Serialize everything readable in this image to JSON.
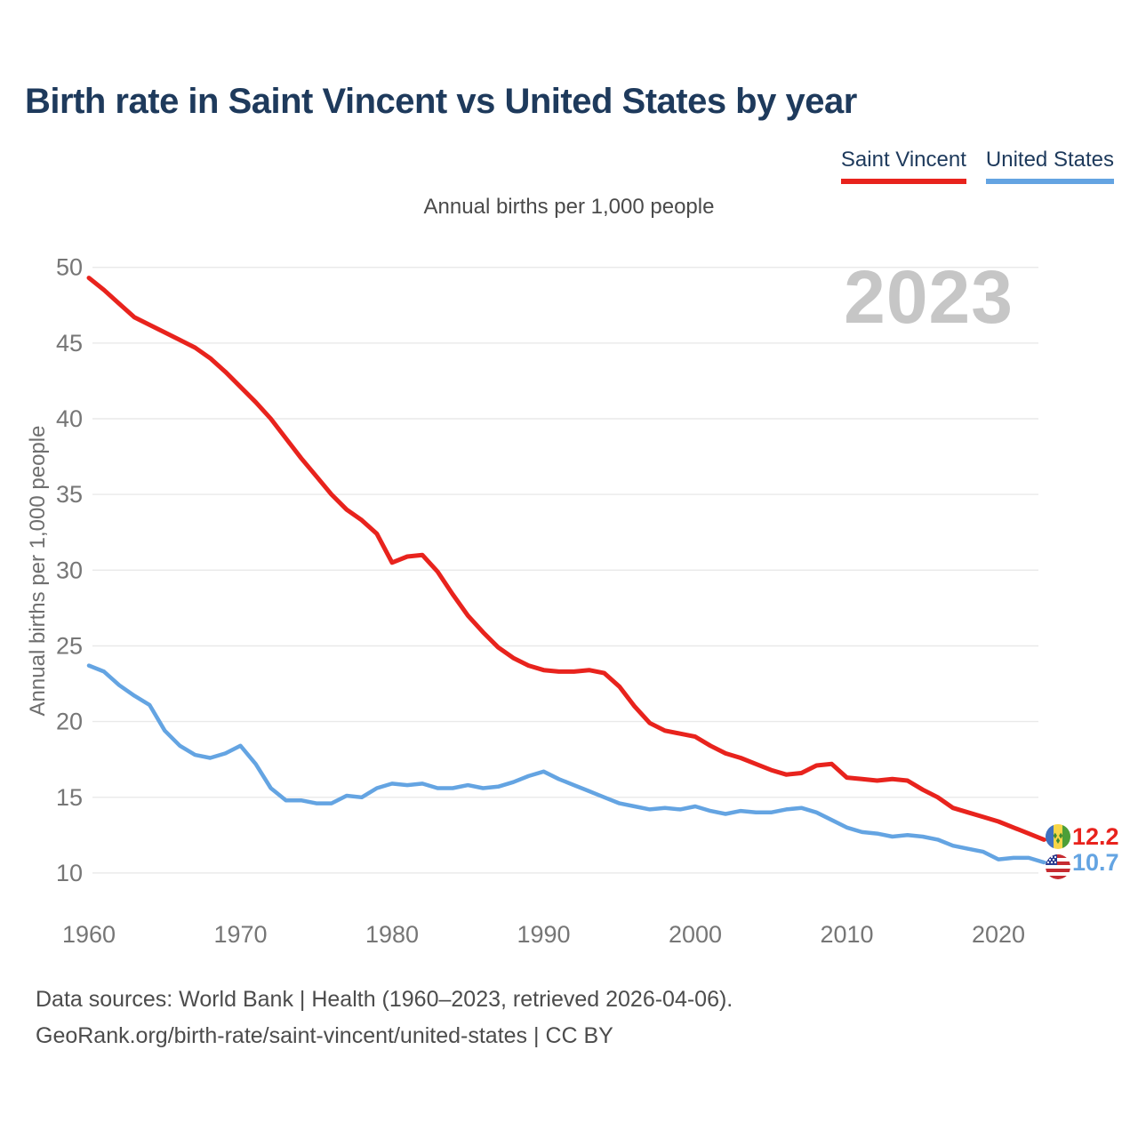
{
  "page": {
    "title": "Birth rate in Saint Vincent vs United States by year",
    "subtitle": "Annual births per 1,000 people",
    "y_axis_title": "Annual births per 1,000 people",
    "watermark_year": "2023",
    "footer_line1": "Data sources: World Bank | Health (1960–2023, retrieved 2026-04-06).",
    "footer_line2": "GeoRank.org/birth-rate/saint-vincent/united-states | CC BY"
  },
  "legend": {
    "items": [
      {
        "label": "Saint Vincent",
        "color": "#e8231d"
      },
      {
        "label": "United States",
        "color": "#64a4e2"
      }
    ]
  },
  "chart_data": {
    "type": "line",
    "title": "Birth rate in Saint Vincent vs United States by year",
    "subtitle": "Annual births per 1,000 people",
    "xlabel": "",
    "ylabel": "Annual births per 1,000 people",
    "grid": true,
    "legend_position": "top-right",
    "ylim": [
      9.5,
      51
    ],
    "x_ticks": [
      1960,
      1970,
      1980,
      1990,
      2000,
      2010,
      2020
    ],
    "y_ticks": [
      10,
      15,
      20,
      25,
      30,
      35,
      40,
      45,
      50
    ],
    "x": [
      1960,
      1961,
      1962,
      1963,
      1964,
      1965,
      1966,
      1967,
      1968,
      1969,
      1970,
      1971,
      1972,
      1973,
      1974,
      1975,
      1976,
      1977,
      1978,
      1979,
      1980,
      1981,
      1982,
      1983,
      1984,
      1985,
      1986,
      1987,
      1988,
      1989,
      1990,
      1991,
      1992,
      1993,
      1994,
      1995,
      1996,
      1997,
      1998,
      1999,
      2000,
      2001,
      2002,
      2003,
      2004,
      2005,
      2006,
      2007,
      2008,
      2009,
      2010,
      2011,
      2012,
      2013,
      2014,
      2015,
      2016,
      2017,
      2018,
      2019,
      2020,
      2021,
      2022,
      2023
    ],
    "series": [
      {
        "name": "Saint Vincent",
        "color": "#e8231d",
        "end_label": "12.2",
        "flag": "saint-vincent",
        "values": [
          49.3,
          48.5,
          47.6,
          46.7,
          46.2,
          45.7,
          45.2,
          44.7,
          44.0,
          43.1,
          42.1,
          41.1,
          40.0,
          38.7,
          37.4,
          36.2,
          35.0,
          34.0,
          33.3,
          32.4,
          30.5,
          30.9,
          31.0,
          29.9,
          28.4,
          27.0,
          25.9,
          24.9,
          24.2,
          23.7,
          23.4,
          23.3,
          23.3,
          23.4,
          23.2,
          22.3,
          21.0,
          19.9,
          19.4,
          19.2,
          19.0,
          18.4,
          17.9,
          17.6,
          17.2,
          16.8,
          16.5,
          16.6,
          17.1,
          17.2,
          16.3,
          16.2,
          16.1,
          16.2,
          16.1,
          15.5,
          15.0,
          14.3,
          14.0,
          13.7,
          13.4,
          13.0,
          12.6,
          12.2
        ]
      },
      {
        "name": "United States",
        "color": "#64a4e2",
        "end_label": "10.7",
        "flag": "united-states",
        "values": [
          23.7,
          23.3,
          22.4,
          21.7,
          21.1,
          19.4,
          18.4,
          17.8,
          17.6,
          17.9,
          18.4,
          17.2,
          15.6,
          14.8,
          14.8,
          14.6,
          14.6,
          15.1,
          15.0,
          15.6,
          15.9,
          15.8,
          15.9,
          15.6,
          15.6,
          15.8,
          15.6,
          15.7,
          16.0,
          16.4,
          16.7,
          16.2,
          15.8,
          15.4,
          15.0,
          14.6,
          14.4,
          14.2,
          14.3,
          14.2,
          14.4,
          14.1,
          13.9,
          14.1,
          14.0,
          14.0,
          14.2,
          14.3,
          14.0,
          13.5,
          13.0,
          12.7,
          12.6,
          12.4,
          12.5,
          12.4,
          12.2,
          11.8,
          11.6,
          11.4,
          10.9,
          11.0,
          11.0,
          10.7
        ]
      }
    ]
  }
}
